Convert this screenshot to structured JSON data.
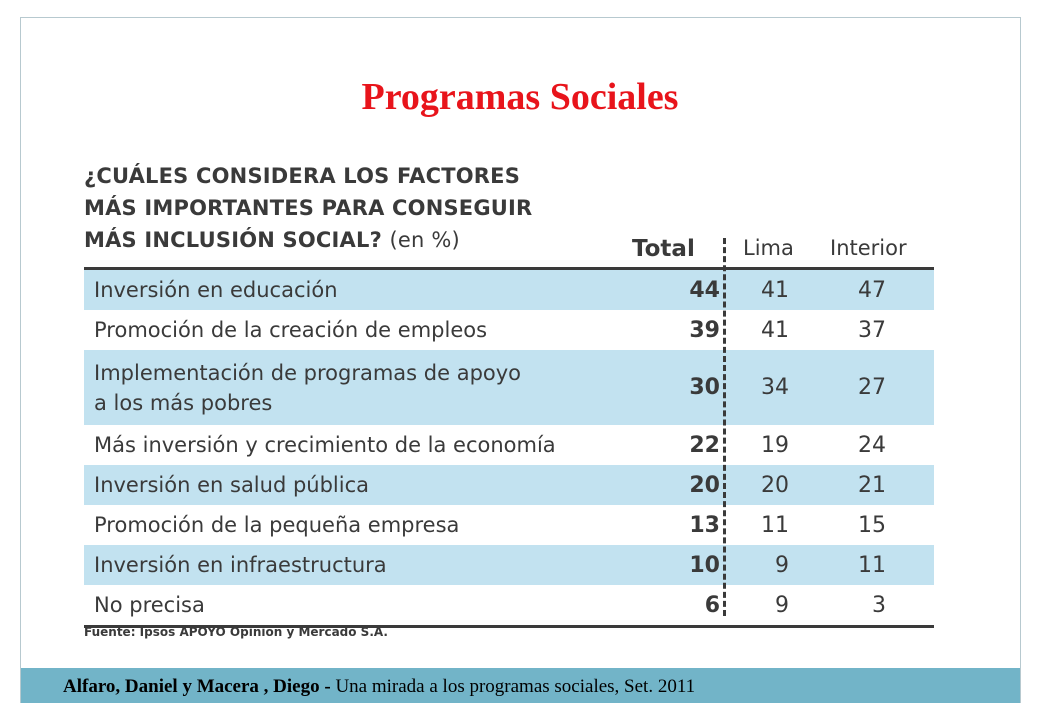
{
  "slide_title": "Programas Sociales",
  "question_lines": [
    "¿CUÁLES CONSIDERA LOS FACTORES",
    "MÁS IMPORTANTES PARA CONSEGUIR",
    "MÁS INCLUSIÓN SOCIAL?"
  ],
  "question_unit": "(en %)",
  "source_note": "Fuente: Ipsos APOYO Opinión y Mercado S.A.",
  "footer": {
    "authors": "Alfaro, Daniel y Macera , Diego -",
    "reference": " Una mirada a los programas sociales, Set. 2011"
  },
  "colors": {
    "title": "#e8141b",
    "row_shade": "#c2e2f0",
    "footer_bg": "#72b4c8"
  },
  "chart_data": {
    "type": "table",
    "columns": [
      "Total",
      "Lima",
      "Interior"
    ],
    "rows": [
      {
        "label": "Inversión en educación",
        "total": "44",
        "lima": "41",
        "interior": "47",
        "shaded": true
      },
      {
        "label": "Promoción de la creación de empleos",
        "total": "39",
        "lima": "41",
        "interior": "37",
        "shaded": false
      },
      {
        "label": "Implementación de programas de apoyo\na los más pobres",
        "total": "30",
        "lima": "34",
        "interior": "27",
        "shaded": true
      },
      {
        "label": "Más inversión y crecimiento de la economía",
        "total": "22",
        "lima": "19",
        "interior": "24",
        "shaded": false
      },
      {
        "label": "Inversión en salud pública",
        "total": "20",
        "lima": "20",
        "interior": "21",
        "shaded": true
      },
      {
        "label": "Promoción de la pequeña empresa",
        "total": "13",
        "lima": "11",
        "interior": "15",
        "shaded": false
      },
      {
        "label": "Inversión en infraestructura",
        "total": "10",
        "lima": "9",
        "interior": "11",
        "shaded": true
      },
      {
        "label": "No precisa",
        "total": "6",
        "lima": "9",
        "interior": "3",
        "shaded": false
      }
    ]
  }
}
